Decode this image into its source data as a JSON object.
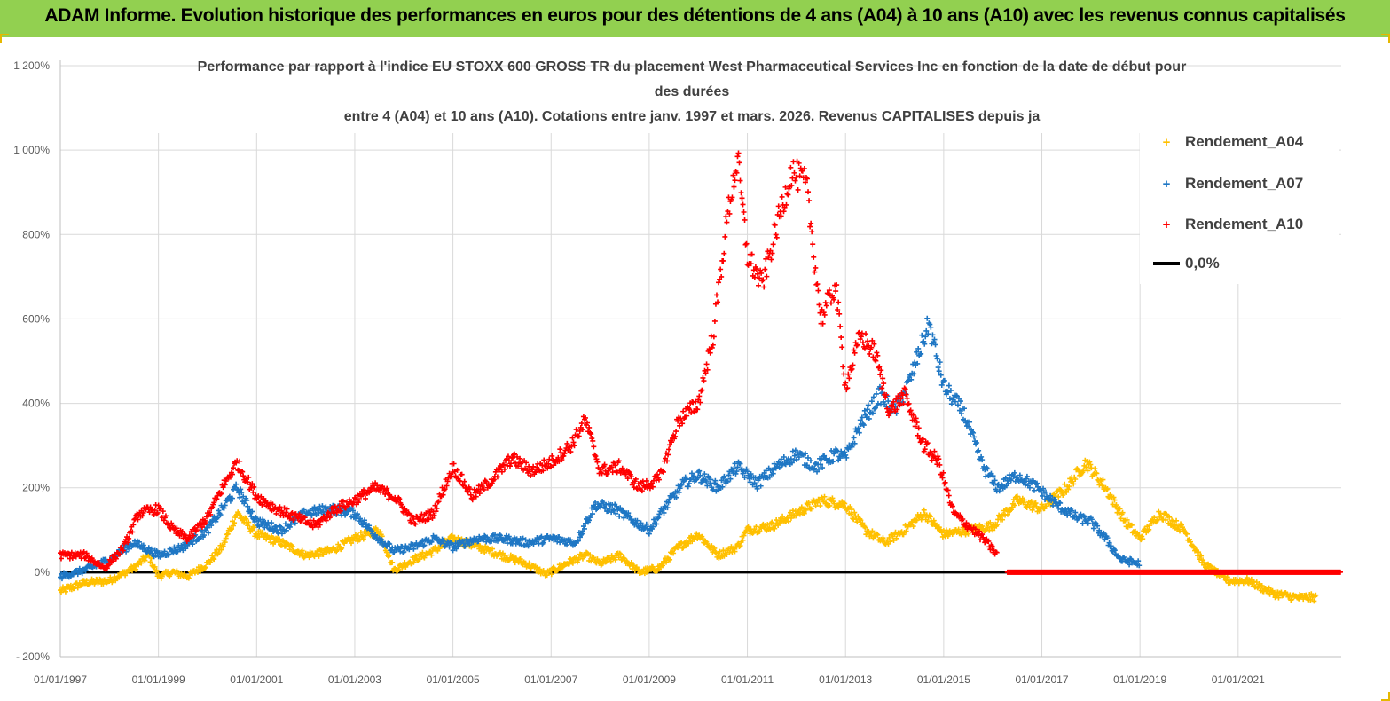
{
  "banner": {
    "title": "ADAM Informe. Evolution historique des performances en euros pour des détentions de 4 ans (A04) à 10 ans (A10) avec les revenus connus capitalisés"
  },
  "colors": {
    "banner_bg": "#92d050",
    "a04": "#ffc000",
    "a07": "#1f77c4",
    "a10": "#ff0000",
    "zero": "#000000"
  },
  "chart_data": {
    "type": "scatter",
    "title_lines": [
      "Performance par rapport à l'indice EU STOXX 600 GROSS TR  du placement West Pharmaceutical Services Inc en fonction de la date de début pour",
      "des durées",
      "entre 4 (A04) et 10 ans (A10). Cotations entre janv. 1997 et mars. 2026. Revenus CAPITALISES depuis ja"
    ],
    "xlim": [
      1997.0,
      2023.1
    ],
    "ylim": [
      -200,
      1200
    ],
    "y_ticks": [
      -200,
      0,
      200,
      400,
      600,
      800,
      1000,
      1200
    ],
    "y_tick_labels": [
      "- 200%",
      "0%",
      "200%",
      "400%",
      "600%",
      "800%",
      "1 000%",
      "1 200%"
    ],
    "x_ticks": [
      1997,
      1999,
      2001,
      2003,
      2005,
      2007,
      2009,
      2011,
      2013,
      2015,
      2017,
      2019,
      2021
    ],
    "x_tick_labels": [
      "01/01/1997",
      "01/01/1999",
      "01/01/2001",
      "01/01/2003",
      "01/01/2005",
      "01/01/2007",
      "01/01/2009",
      "01/01/2011",
      "01/01/2013",
      "01/01/2015",
      "01/01/2017",
      "01/01/2019",
      "01/01/2021"
    ],
    "legend": [
      "Rendement_A04",
      "Rendement_A07",
      "Rendement_A10",
      "0,0%"
    ],
    "series": [
      {
        "name": "Rendement_A04",
        "color": "#ffc000",
        "points": [
          [
            1997.0,
            -45
          ],
          [
            1997.5,
            -25
          ],
          [
            1998.0,
            -20
          ],
          [
            1998.5,
            10
          ],
          [
            1998.8,
            40
          ],
          [
            1999.0,
            -10
          ],
          [
            1999.3,
            0
          ],
          [
            1999.6,
            -10
          ],
          [
            2000.0,
            20
          ],
          [
            2000.3,
            60
          ],
          [
            2000.6,
            140
          ],
          [
            2001.0,
            90
          ],
          [
            2001.5,
            70
          ],
          [
            2002.0,
            40
          ],
          [
            2002.5,
            50
          ],
          [
            2003.0,
            80
          ],
          [
            2003.5,
            100
          ],
          [
            2003.8,
            5
          ],
          [
            2004.2,
            30
          ],
          [
            2004.6,
            50
          ],
          [
            2005.0,
            80
          ],
          [
            2005.5,
            60
          ],
          [
            2006.0,
            40
          ],
          [
            2006.5,
            20
          ],
          [
            2006.9,
            -5
          ],
          [
            2007.3,
            20
          ],
          [
            2007.7,
            40
          ],
          [
            2008.0,
            20
          ],
          [
            2008.4,
            40
          ],
          [
            2008.8,
            0
          ],
          [
            2009.2,
            10
          ],
          [
            2009.6,
            60
          ],
          [
            2010.0,
            90
          ],
          [
            2010.4,
            40
          ],
          [
            2010.8,
            60
          ],
          [
            2011.0,
            100
          ],
          [
            2011.5,
            110
          ],
          [
            2012.0,
            140
          ],
          [
            2012.5,
            170
          ],
          [
            2013.0,
            160
          ],
          [
            2013.4,
            100
          ],
          [
            2013.8,
            70
          ],
          [
            2014.2,
            100
          ],
          [
            2014.6,
            140
          ],
          [
            2015.0,
            90
          ],
          [
            2015.5,
            100
          ],
          [
            2016.0,
            110
          ],
          [
            2016.5,
            170
          ],
          [
            2017.0,
            150
          ],
          [
            2017.5,
            200
          ],
          [
            2017.9,
            260
          ],
          [
            2018.3,
            200
          ],
          [
            2018.7,
            120
          ],
          [
            2019.0,
            80
          ],
          [
            2019.4,
            140
          ],
          [
            2019.9,
            100
          ],
          [
            2020.3,
            20
          ],
          [
            2020.8,
            -20
          ],
          [
            2021.2,
            -20
          ],
          [
            2021.7,
            -50
          ],
          [
            2022.2,
            -60
          ],
          [
            2022.6,
            -60
          ]
        ]
      },
      {
        "name": "Rendement_A07",
        "color": "#1f77c4",
        "points": [
          [
            1997.0,
            -10
          ],
          [
            1997.5,
            5
          ],
          [
            1998.0,
            30
          ],
          [
            1998.5,
            70
          ],
          [
            1999.0,
            40
          ],
          [
            1999.5,
            60
          ],
          [
            2000.0,
            100
          ],
          [
            2000.3,
            150
          ],
          [
            2000.6,
            200
          ],
          [
            2001.0,
            120
          ],
          [
            2001.5,
            100
          ],
          [
            2002.0,
            140
          ],
          [
            2002.5,
            150
          ],
          [
            2003.0,
            140
          ],
          [
            2003.4,
            90
          ],
          [
            2003.8,
            50
          ],
          [
            2004.2,
            60
          ],
          [
            2004.6,
            80
          ],
          [
            2005.0,
            60
          ],
          [
            2005.5,
            80
          ],
          [
            2006.0,
            80
          ],
          [
            2006.5,
            70
          ],
          [
            2007.0,
            80
          ],
          [
            2007.5,
            70
          ],
          [
            2007.9,
            160
          ],
          [
            2008.3,
            150
          ],
          [
            2008.7,
            120
          ],
          [
            2009.0,
            100
          ],
          [
            2009.3,
            150
          ],
          [
            2009.7,
            210
          ],
          [
            2010.0,
            230
          ],
          [
            2010.4,
            200
          ],
          [
            2010.8,
            250
          ],
          [
            2011.2,
            210
          ],
          [
            2011.6,
            250
          ],
          [
            2012.0,
            280
          ],
          [
            2012.4,
            250
          ],
          [
            2012.8,
            280
          ],
          [
            2013.0,
            270
          ],
          [
            2013.3,
            350
          ],
          [
            2013.7,
            420
          ],
          [
            2014.0,
            380
          ],
          [
            2014.3,
            450
          ],
          [
            2014.7,
            590
          ],
          [
            2015.0,
            440
          ],
          [
            2015.4,
            380
          ],
          [
            2015.8,
            250
          ],
          [
            2016.1,
            200
          ],
          [
            2016.5,
            230
          ],
          [
            2016.9,
            200
          ],
          [
            2017.3,
            160
          ],
          [
            2017.7,
            130
          ],
          [
            2018.0,
            120
          ],
          [
            2018.3,
            80
          ],
          [
            2018.6,
            30
          ],
          [
            2019.0,
            20
          ]
        ]
      },
      {
        "name": "Rendement_A10",
        "color": "#ff0000",
        "points": [
          [
            1997.0,
            40
          ],
          [
            1997.5,
            40
          ],
          [
            1997.9,
            10
          ],
          [
            1998.3,
            60
          ],
          [
            1998.6,
            140
          ],
          [
            1999.0,
            150
          ],
          [
            1999.3,
            100
          ],
          [
            1999.6,
            80
          ],
          [
            2000.0,
            130
          ],
          [
            2000.3,
            200
          ],
          [
            2000.6,
            260
          ],
          [
            2001.0,
            180
          ],
          [
            2001.4,
            150
          ],
          [
            2001.8,
            130
          ],
          [
            2002.2,
            110
          ],
          [
            2002.6,
            150
          ],
          [
            2003.0,
            170
          ],
          [
            2003.4,
            200
          ],
          [
            2003.8,
            180
          ],
          [
            2004.2,
            120
          ],
          [
            2004.6,
            140
          ],
          [
            2005.0,
            250
          ],
          [
            2005.4,
            180
          ],
          [
            2005.8,
            220
          ],
          [
            2006.2,
            270
          ],
          [
            2006.6,
            240
          ],
          [
            2007.0,
            260
          ],
          [
            2007.4,
            300
          ],
          [
            2007.7,
            360
          ],
          [
            2008.0,
            240
          ],
          [
            2008.4,
            250
          ],
          [
            2008.8,
            200
          ],
          [
            2009.2,
            220
          ],
          [
            2009.6,
            360
          ],
          [
            2010.0,
            400
          ],
          [
            2010.3,
            560
          ],
          [
            2010.6,
            850
          ],
          [
            2010.8,
            980
          ],
          [
            2011.0,
            750
          ],
          [
            2011.3,
            680
          ],
          [
            2011.6,
            820
          ],
          [
            2011.9,
            950
          ],
          [
            2012.2,
            920
          ],
          [
            2012.5,
            600
          ],
          [
            2012.8,
            680
          ],
          [
            2013.0,
            440
          ],
          [
            2013.3,
            560
          ],
          [
            2013.6,
            520
          ],
          [
            2013.9,
            380
          ],
          [
            2014.2,
            420
          ],
          [
            2014.6,
            300
          ],
          [
            2014.9,
            260
          ],
          [
            2015.2,
            140
          ],
          [
            2015.5,
            110
          ],
          [
            2015.8,
            80
          ],
          [
            2016.1,
            40
          ]
        ]
      },
      {
        "name": "Rendement_A10_zero_segment",
        "color": "#ff0000",
        "points": [
          [
            2016.3,
            0
          ],
          [
            2023.1,
            0
          ]
        ]
      }
    ]
  }
}
